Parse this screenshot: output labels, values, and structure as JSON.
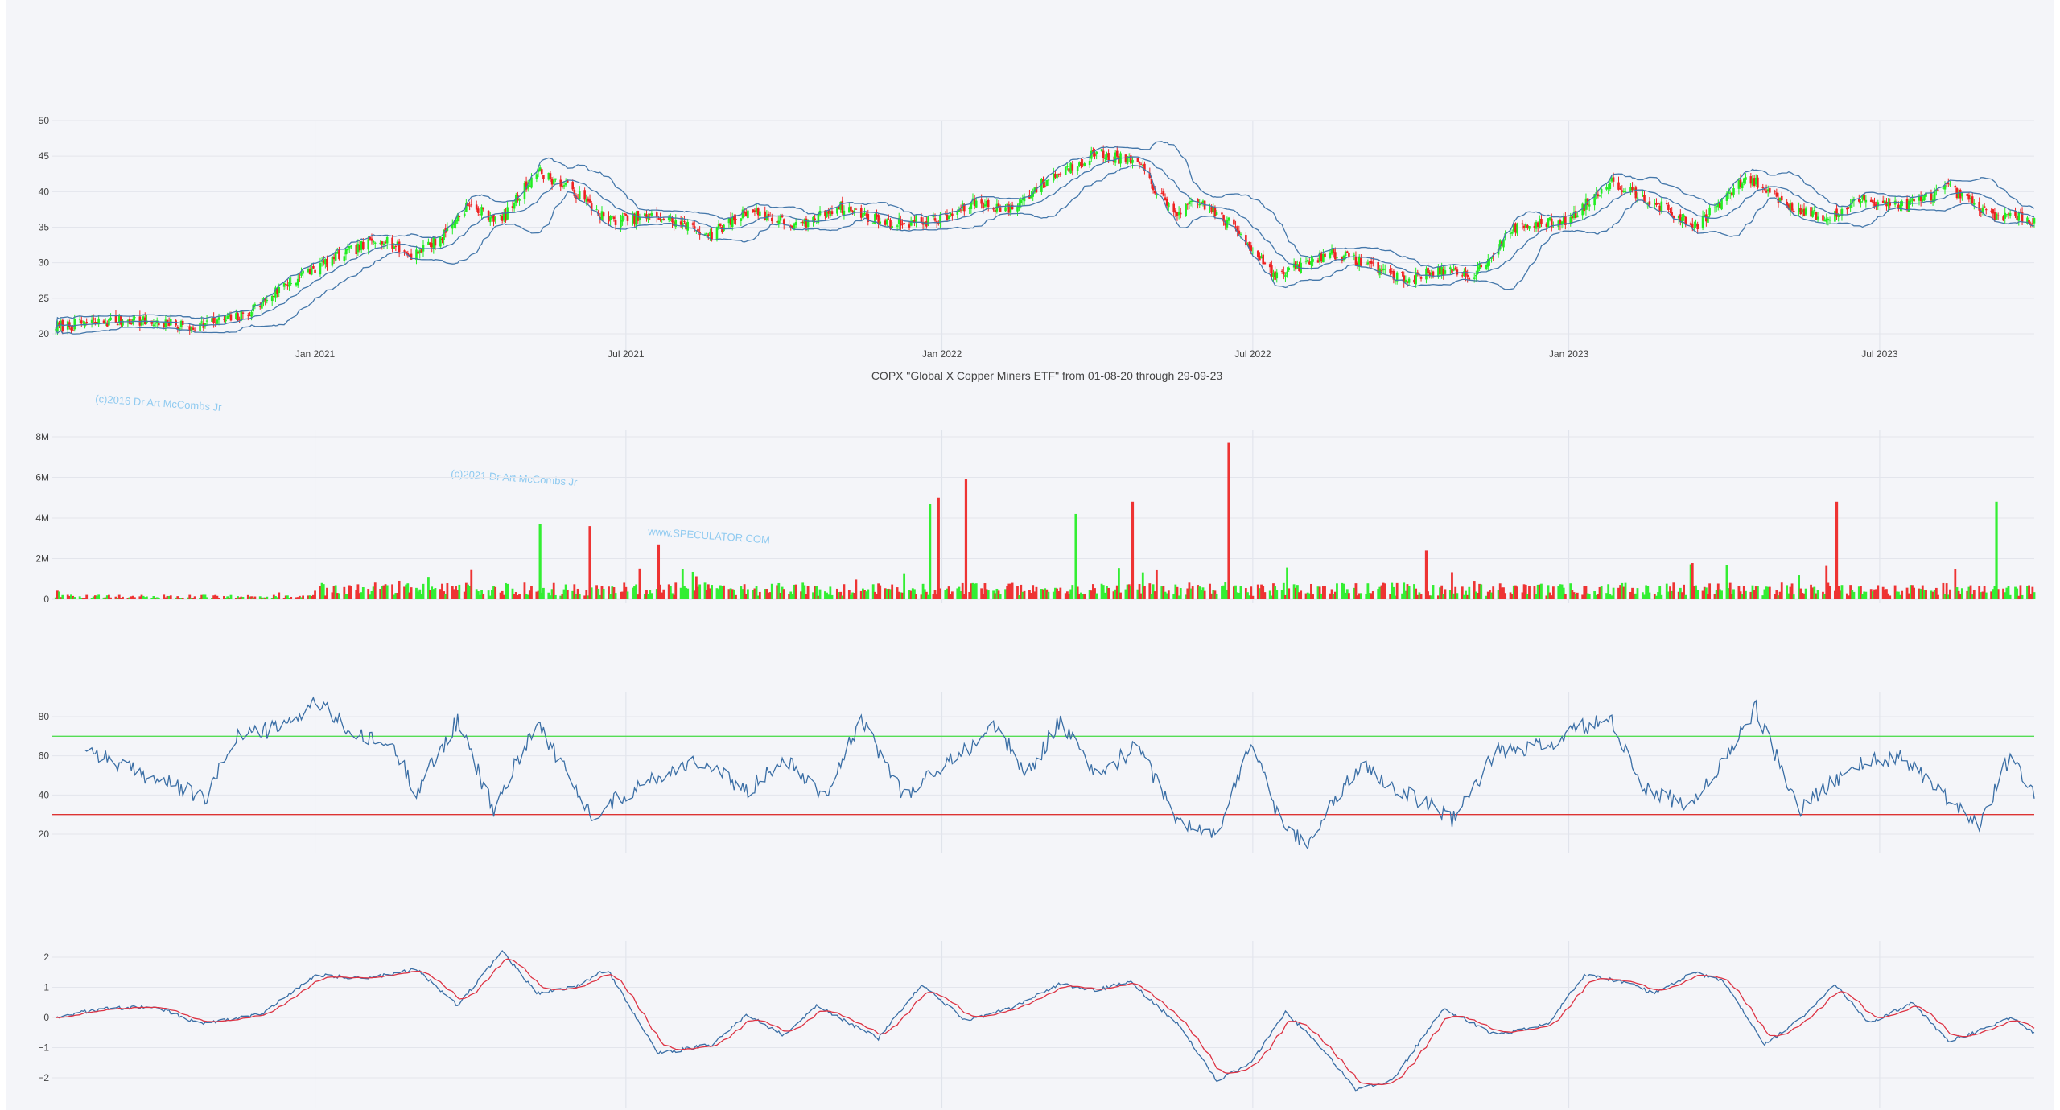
{
  "chart_data": [
    {
      "type": "candlestick",
      "panel": "price",
      "ticker": "COPX",
      "ylim": [
        20,
        50
      ],
      "yticks": [
        "50",
        "45",
        "40",
        "35",
        "30",
        "25",
        "20"
      ],
      "xticks": [
        "Jan 2021",
        "Jul 2021",
        "Jan 2022",
        "Jul 2022",
        "Jan 2023",
        "Jul 2023"
      ],
      "x_range": [
        "2020-08-01",
        "2023-09-29"
      ],
      "overlays": [
        "Bollinger upper band",
        "Bollinger middle band",
        "Bollinger lower band"
      ],
      "colors": {
        "up": "#22ee22",
        "down": "#ee2222",
        "band": "#4477aa"
      },
      "close_keypoints": [
        [
          "2020-08-01",
          21.0
        ],
        [
          "2020-09-15",
          22.0
        ],
        [
          "2020-10-20",
          21.0
        ],
        [
          "2020-11-20",
          22.5
        ],
        [
          "2020-12-15",
          27.0
        ],
        [
          "2021-01-15",
          31.0
        ],
        [
          "2021-02-10",
          33.5
        ],
        [
          "2021-02-25",
          31.0
        ],
        [
          "2021-03-15",
          33.5
        ],
        [
          "2021-03-30",
          38.0
        ],
        [
          "2021-04-20",
          36.0
        ],
        [
          "2021-05-10",
          43.0
        ],
        [
          "2021-06-01",
          40.0
        ],
        [
          "2021-06-20",
          36.0
        ],
        [
          "2021-07-20",
          36.5
        ],
        [
          "2021-08-20",
          34.0
        ],
        [
          "2021-09-10",
          37.5
        ],
        [
          "2021-10-10",
          35.0
        ],
        [
          "2021-11-01",
          38.0
        ],
        [
          "2021-12-01",
          35.5
        ],
        [
          "2022-01-01",
          36.0
        ],
        [
          "2022-01-20",
          38.5
        ],
        [
          "2022-02-10",
          37.5
        ],
        [
          "2022-03-05",
          42.0
        ],
        [
          "2022-04-01",
          45.5
        ],
        [
          "2022-04-25",
          44.0
        ],
        [
          "2022-05-15",
          37.0
        ],
        [
          "2022-06-01",
          38.5
        ],
        [
          "2022-06-20",
          35.0
        ],
        [
          "2022-07-15",
          28.0
        ],
        [
          "2022-08-15",
          31.5
        ],
        [
          "2022-09-10",
          29.5
        ],
        [
          "2022-09-28",
          27.5
        ],
        [
          "2022-10-15",
          29.0
        ],
        [
          "2022-11-05",
          28.0
        ],
        [
          "2022-12-01",
          35.0
        ],
        [
          "2023-01-01",
          36.0
        ],
        [
          "2023-01-25",
          41.5
        ],
        [
          "2023-02-20",
          38.5
        ],
        [
          "2023-03-15",
          35.0
        ],
        [
          "2023-04-15",
          42.0
        ],
        [
          "2023-05-10",
          38.0
        ],
        [
          "2023-06-01",
          36.0
        ],
        [
          "2023-06-20",
          39.0
        ],
        [
          "2023-07-15",
          38.0
        ],
        [
          "2023-08-10",
          40.5
        ],
        [
          "2023-09-01",
          37.0
        ],
        [
          "2023-09-29",
          36.0
        ]
      ]
    },
    {
      "type": "bar",
      "panel": "volume",
      "ylim": [
        0,
        8000000
      ],
      "yticks": [
        "8M",
        "6M",
        "4M",
        "2M",
        "0"
      ],
      "xticks": [
        "Jan 2021",
        "Jul 2021",
        "Jan 2022",
        "Jul 2022",
        "Jan 2023",
        "Jul 2023"
      ],
      "spikes": [
        [
          "2021-05-12",
          3700000,
          "up"
        ],
        [
          "2021-06-10",
          3600000,
          "down"
        ],
        [
          "2021-07-20",
          2700000,
          "down"
        ],
        [
          "2021-12-25",
          4700000,
          "up"
        ],
        [
          "2021-12-30",
          5000000,
          "down"
        ],
        [
          "2022-01-15",
          5900000,
          "down"
        ],
        [
          "2022-03-20",
          4200000,
          "up"
        ],
        [
          "2022-04-22",
          4800000,
          "down"
        ],
        [
          "2022-06-17",
          7700000,
          "down"
        ],
        [
          "2022-10-10",
          2400000,
          "down"
        ],
        [
          "2023-06-06",
          4800000,
          "down"
        ],
        [
          "2023-09-07",
          4800000,
          "up"
        ]
      ]
    },
    {
      "type": "line",
      "panel": "oscillator",
      "ylim": [
        10,
        90
      ],
      "yticks": [
        "80",
        "60",
        "40",
        "20"
      ],
      "xticks": [
        "Jan 2021",
        "Jul 2021",
        "Jan 2022",
        "Jul 2022",
        "Jan 2023",
        "Jul 2023"
      ],
      "threshold_upper": 70,
      "threshold_lower": 30,
      "colors": {
        "line": "#3a6ea5",
        "upper": "#55dd55",
        "lower": "#dd3333"
      },
      "keypoints": [
        [
          "2020-08-20",
          65
        ],
        [
          "2020-09-10",
          55
        ],
        [
          "2020-10-10",
          45
        ],
        [
          "2020-10-30",
          38
        ],
        [
          "2020-11-15",
          70
        ],
        [
          "2020-12-15",
          75
        ],
        [
          "2021-01-01",
          88
        ],
        [
          "2021-01-25",
          70
        ],
        [
          "2021-02-15",
          65
        ],
        [
          "2021-03-01",
          42
        ],
        [
          "2021-03-25",
          78
        ],
        [
          "2021-04-15",
          32
        ],
        [
          "2021-05-10",
          78
        ],
        [
          "2021-06-10",
          30
        ],
        [
          "2021-07-10",
          45
        ],
        [
          "2021-08-10",
          58
        ],
        [
          "2021-09-10",
          42
        ],
        [
          "2021-10-01",
          60
        ],
        [
          "2021-10-25",
          40
        ],
        [
          "2021-11-15",
          78
        ],
        [
          "2021-12-10",
          40
        ],
        [
          "2022-01-10",
          60
        ],
        [
          "2022-02-01",
          75
        ],
        [
          "2022-02-20",
          50
        ],
        [
          "2022-03-10",
          78
        ],
        [
          "2022-04-01",
          50
        ],
        [
          "2022-04-25",
          65
        ],
        [
          "2022-05-20",
          25
        ],
        [
          "2022-06-10",
          20
        ],
        [
          "2022-07-01",
          68
        ],
        [
          "2022-07-15",
          30
        ],
        [
          "2022-08-01",
          15
        ],
        [
          "2022-09-01",
          55
        ],
        [
          "2022-10-01",
          40
        ],
        [
          "2022-10-25",
          28
        ],
        [
          "2022-11-20",
          62
        ],
        [
          "2022-12-20",
          65
        ],
        [
          "2023-01-10",
          75
        ],
        [
          "2023-01-25",
          78
        ],
        [
          "2023-02-15",
          42
        ],
        [
          "2023-03-15",
          35
        ],
        [
          "2023-04-20",
          84
        ],
        [
          "2023-05-15",
          32
        ],
        [
          "2023-06-15",
          55
        ],
        [
          "2023-07-15",
          60
        ],
        [
          "2023-08-10",
          38
        ],
        [
          "2023-08-28",
          25
        ],
        [
          "2023-09-15",
          60
        ],
        [
          "2023-09-29",
          40
        ]
      ]
    },
    {
      "type": "line",
      "panel": "macd",
      "ylim": [
        -2.6,
        2.5
      ],
      "yticks": [
        "2",
        "1",
        "0",
        "−1",
        "−2"
      ],
      "xticks": [
        "Jan 2021",
        "Jul 2021",
        "Jan 2022",
        "Jul 2022",
        "Jan 2023",
        "Jul 2023"
      ],
      "colors": {
        "line": "#3a6ea5",
        "signal": "#dd3344"
      },
      "keypoints": [
        [
          "2020-08-01",
          0.0
        ],
        [
          "2020-09-01",
          0.3
        ],
        [
          "2020-10-01",
          0.35
        ],
        [
          "2020-10-25",
          -0.2
        ],
        [
          "2020-12-01",
          0.1
        ],
        [
          "2021-01-01",
          1.4
        ],
        [
          "2021-02-01",
          1.3
        ],
        [
          "2021-03-01",
          1.6
        ],
        [
          "2021-03-25",
          0.4
        ],
        [
          "2021-04-20",
          2.2
        ],
        [
          "2021-05-10",
          0.8
        ],
        [
          "2021-06-01",
          1.0
        ],
        [
          "2021-06-20",
          1.6
        ],
        [
          "2021-07-20",
          -1.2
        ],
        [
          "2021-08-20",
          -0.9
        ],
        [
          "2021-09-10",
          0.1
        ],
        [
          "2021-10-01",
          -0.6
        ],
        [
          "2021-10-20",
          0.4
        ],
        [
          "2021-11-25",
          -0.7
        ],
        [
          "2021-12-20",
          1.1
        ],
        [
          "2022-01-15",
          -0.1
        ],
        [
          "2022-02-10",
          0.3
        ],
        [
          "2022-03-10",
          1.1
        ],
        [
          "2022-04-01",
          0.9
        ],
        [
          "2022-04-20",
          1.2
        ],
        [
          "2022-05-20",
          -0.3
        ],
        [
          "2022-06-10",
          -2.1
        ],
        [
          "2022-06-30",
          -1.5
        ],
        [
          "2022-07-20",
          0.2
        ],
        [
          "2022-08-10",
          -1.0
        ],
        [
          "2022-08-30",
          -2.4
        ],
        [
          "2022-09-20",
          -2.1
        ],
        [
          "2022-10-20",
          0.3
        ],
        [
          "2022-11-20",
          -0.6
        ],
        [
          "2022-12-20",
          -0.2
        ],
        [
          "2023-01-10",
          1.4
        ],
        [
          "2023-02-01",
          1.2
        ],
        [
          "2023-02-20",
          0.8
        ],
        [
          "2023-03-15",
          1.5
        ],
        [
          "2023-04-01",
          1.2
        ],
        [
          "2023-04-25",
          -0.9
        ],
        [
          "2023-05-15",
          -0.1
        ],
        [
          "2023-06-05",
          1.1
        ],
        [
          "2023-06-25",
          -0.2
        ],
        [
          "2023-07-20",
          0.5
        ],
        [
          "2023-08-10",
          -0.8
        ],
        [
          "2023-08-30",
          -0.4
        ],
        [
          "2023-09-15",
          0.0
        ],
        [
          "2023-09-29",
          -0.5
        ]
      ]
    }
  ],
  "caption": "COPX \"Global X Copper Miners ETF\" from 01-08-20 through 29-09-23",
  "watermarks": [
    "(c)2016 Dr Art McCombs Jr",
    "(c)2021 Dr Art McCombs Jr",
    "www.SPECULATOR.COM"
  ]
}
